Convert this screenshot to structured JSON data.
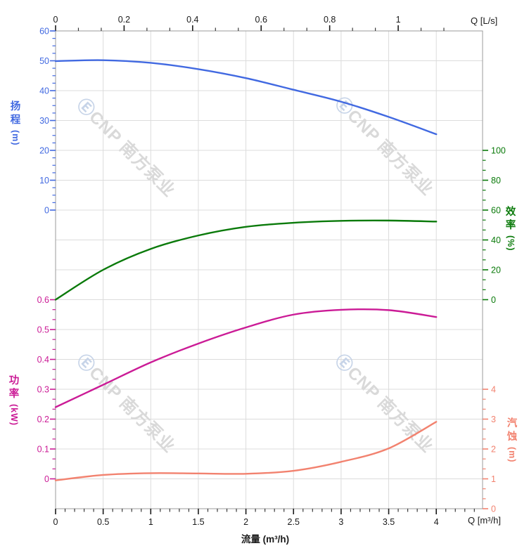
{
  "watermark": {
    "logo_glyph": "Ⓔ",
    "brand_text": "CNP 南方泵业",
    "logo_color": "#c7d4e8",
    "text_color": "#d9d9d9"
  },
  "chart_data": {
    "type": "line",
    "title": "",
    "x_label_bottom": "流量 (m³/h)",
    "x_corner_bottom": "Q [m³/h]",
    "x_corner_top": "Q [L/s]",
    "x_unit_bottom": "m³/h",
    "x_unit_top": "L/s",
    "top_ls_per_m3h": 0.27778,
    "grid": {
      "show": true,
      "color": "#dcdcdc",
      "frame_color": "#9b9b9b"
    },
    "x_axes": {
      "bottom": {
        "tick_values": [
          0,
          0.5,
          1,
          1.5,
          2,
          2.5,
          3,
          3.5,
          4
        ],
        "tick_labels": [
          "0",
          "0.5",
          "1",
          "1.5",
          "2",
          "2.5",
          "3",
          "3.5",
          "4"
        ],
        "minor_step": 0.1,
        "minor_max": 4.4,
        "range_max": 4.4864,
        "color": "#1a1a1a"
      },
      "top": {
        "tick_values_ls": [
          0,
          0.2,
          0.4,
          0.6,
          0.8,
          1
        ],
        "tick_labels": [
          "0",
          "0.2",
          "0.4",
          "0.6",
          "0.8",
          "1"
        ],
        "minor_step_ls": 0.0666667,
        "minor_max_ls": 1.14,
        "color": "#1a1a1a"
      }
    },
    "y_axes": {
      "head": {
        "title": "扬程",
        "unit": "(m)",
        "color": "#4169e1",
        "side": "left",
        "range": [
          0,
          60
        ],
        "tick_values": [
          60,
          50,
          40,
          30,
          20,
          10,
          0
        ],
        "tick_labels": [
          "60",
          "50",
          "40",
          "30",
          "20",
          "10",
          "0"
        ],
        "minor_divisions": 4
      },
      "efficiency": {
        "title": "效率",
        "unit": "(%)",
        "color": "#0a7a0a",
        "side": "right",
        "range": [
          0,
          100
        ],
        "tick_values": [
          100,
          80,
          60,
          40,
          20,
          0
        ],
        "tick_labels": [
          "100",
          "80",
          "60",
          "40",
          "20",
          "0"
        ],
        "minor_divisions": 3
      },
      "power": {
        "title": "功率",
        "unit": "(kW)",
        "color": "#cb1b96",
        "side": "left",
        "range": [
          0,
          0.6
        ],
        "tick_values": [
          0.6,
          0.5,
          0.4,
          0.3,
          0.2,
          0.1,
          0
        ],
        "tick_labels": [
          "0.6",
          "0.5",
          "0.4",
          "0.3",
          "0.2",
          "0.1",
          "0"
        ],
        "minor_divisions": 3
      },
      "npsh": {
        "title": "汽蚀",
        "unit": "(m)",
        "color": "#f2826f",
        "side": "right",
        "range": [
          0,
          4
        ],
        "tick_values": [
          4,
          3,
          2,
          1,
          0
        ],
        "tick_labels": [
          "4",
          "3",
          "2",
          "1",
          "0"
        ],
        "minor_divisions": 3
      }
    },
    "x": [
      0,
      0.5,
      1,
      1.5,
      2,
      2.5,
      3,
      3.5,
      4
    ],
    "series": [
      {
        "id": "head",
        "name": "扬程",
        "axis": "head",
        "unit": "m",
        "color": "#4169e1",
        "values": [
          49.9,
          50.2,
          49.3,
          47.2,
          44.2,
          40.3,
          36.3,
          31.2,
          25.4
        ]
      },
      {
        "id": "efficiency",
        "name": "效率",
        "axis": "efficiency",
        "unit": "%",
        "color": "#0a7a0a",
        "values": [
          0,
          20,
          34,
          43,
          48.8,
          51.5,
          52.8,
          53,
          52.3
        ]
      },
      {
        "id": "power",
        "name": "功率",
        "axis": "power",
        "unit": "kW",
        "color": "#cb1b96",
        "values": [
          0.24,
          0.315,
          0.39,
          0.453,
          0.507,
          0.55,
          0.566,
          0.565,
          0.542
        ]
      },
      {
        "id": "npsh",
        "name": "汽蚀",
        "axis": "npsh",
        "unit": "m",
        "color": "#f2826f",
        "values": [
          0.95,
          1.13,
          1.19,
          1.18,
          1.17,
          1.27,
          1.57,
          2.02,
          2.91
        ]
      }
    ]
  }
}
